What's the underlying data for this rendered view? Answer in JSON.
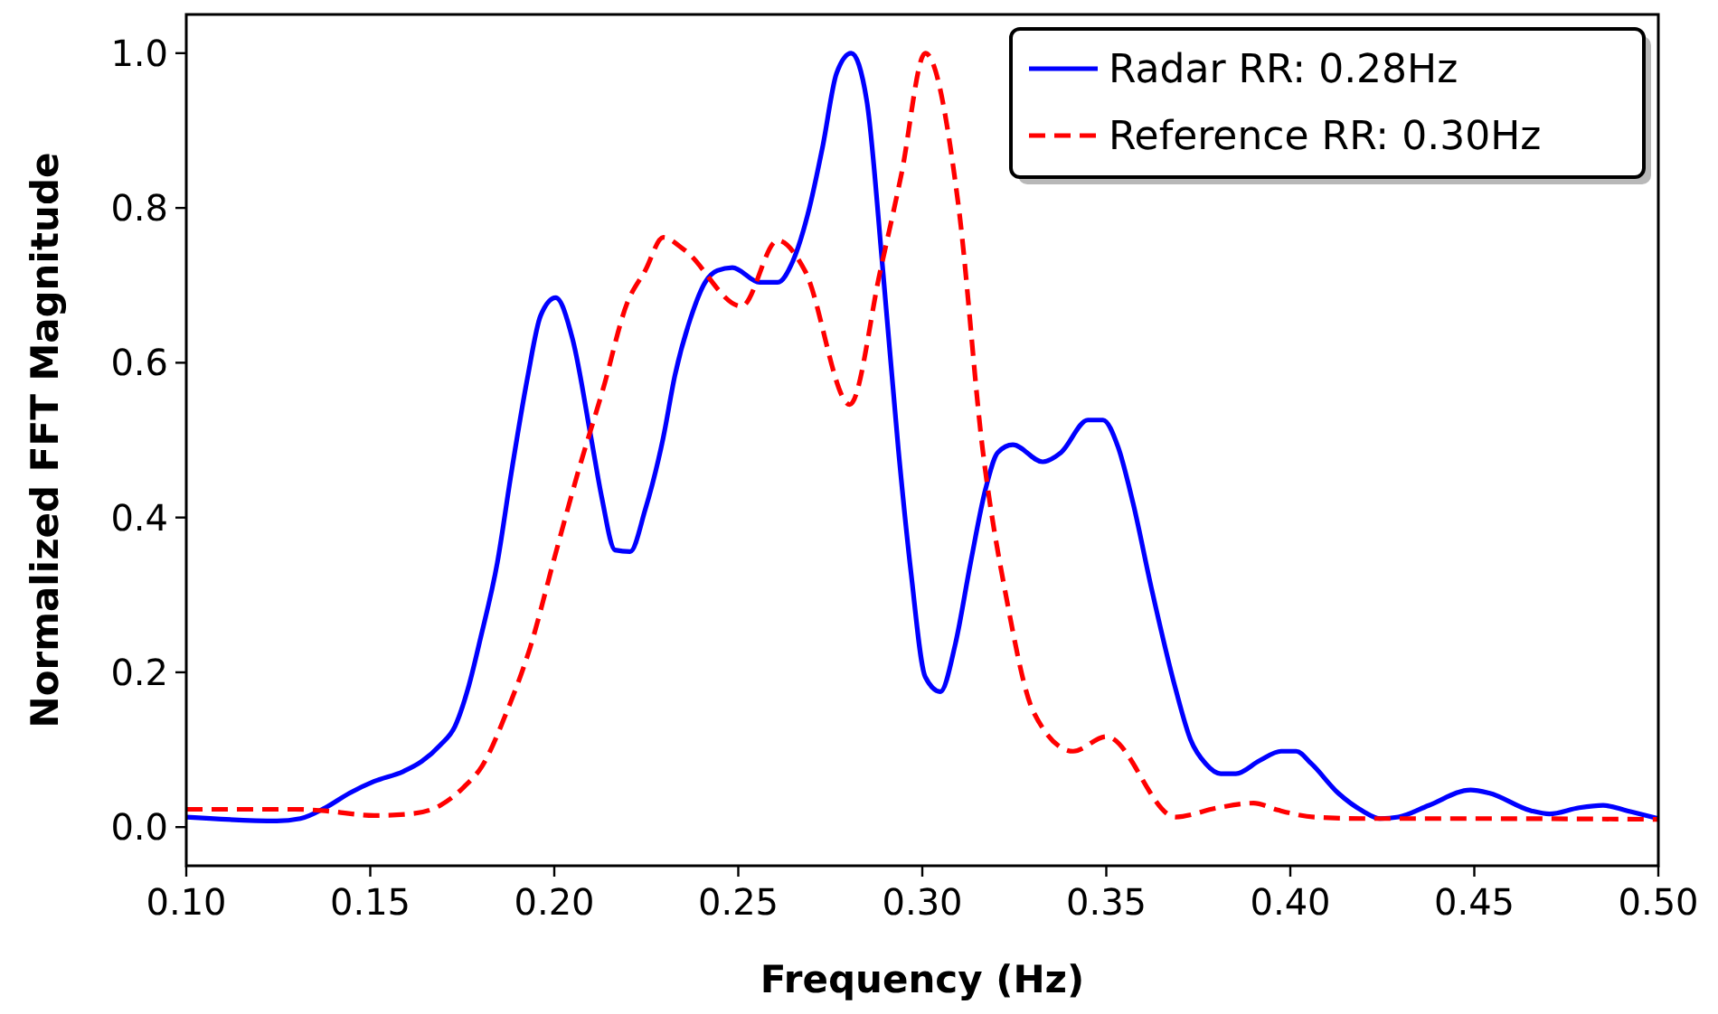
{
  "chart_data": {
    "type": "line",
    "xlabel": "Frequency (Hz)",
    "ylabel": "Normalized FFT Magnitude",
    "xlim": [
      0.1,
      0.5
    ],
    "ylim": [
      -0.05,
      1.05
    ],
    "xticks": [
      {
        "value": 0.1,
        "label": "0.10"
      },
      {
        "value": 0.15,
        "label": "0.15"
      },
      {
        "value": 0.2,
        "label": "0.20"
      },
      {
        "value": 0.25,
        "label": "0.25"
      },
      {
        "value": 0.3,
        "label": "0.30"
      },
      {
        "value": 0.35,
        "label": "0.35"
      },
      {
        "value": 0.4,
        "label": "0.40"
      },
      {
        "value": 0.45,
        "label": "0.45"
      },
      {
        "value": 0.5,
        "label": "0.50"
      }
    ],
    "yticks": [
      {
        "value": 0,
        "label": "0.0"
      },
      {
        "value": 0.2,
        "label": "0.2"
      },
      {
        "value": 0.4,
        "label": "0.4"
      },
      {
        "value": 0.6,
        "label": "0.6"
      },
      {
        "value": 0.8,
        "label": "0.8"
      },
      {
        "value": 1,
        "label": "1.0"
      }
    ],
    "legend": "top right",
    "grid": false,
    "series": [
      {
        "name": "Radar RR: 0.28Hz",
        "color": "#0000ff",
        "line_style": "solid",
        "x": [
          0.1,
          0.1246,
          0.131,
          0.1378,
          0.1444,
          0.151,
          0.159,
          0.164,
          0.169,
          0.173,
          0.1768,
          0.18,
          0.1845,
          0.1883,
          0.1927,
          0.1963,
          0.2004,
          0.205,
          0.21,
          0.2129,
          0.2165,
          0.2206,
          0.2247,
          0.2296,
          0.2328,
          0.237,
          0.241,
          0.2443,
          0.2484,
          0.2558,
          0.2607,
          0.2648,
          0.2689,
          0.273,
          0.2767,
          0.2807,
          0.2849,
          0.2893,
          0.2935,
          0.297,
          0.3008,
          0.3049,
          0.309,
          0.3131,
          0.3172,
          0.3205,
          0.3246,
          0.3327,
          0.3377,
          0.345,
          0.3491,
          0.3532,
          0.3573,
          0.3622,
          0.3688,
          0.3729,
          0.377,
          0.3811,
          0.3852,
          0.3917,
          0.3975,
          0.4016,
          0.4057,
          0.413,
          0.4196,
          0.4245,
          0.4294,
          0.4376,
          0.449,
          0.454,
          0.4655,
          0.4704,
          0.4785,
          0.485,
          0.4916,
          0.5
        ],
        "values": [
          0.013,
          0.008,
          0.011,
          0.025,
          0.044,
          0.059,
          0.072,
          0.085,
          0.106,
          0.13,
          0.183,
          0.245,
          0.341,
          0.457,
          0.58,
          0.661,
          0.684,
          0.63,
          0.503,
          0.426,
          0.358,
          0.356,
          0.41,
          0.503,
          0.584,
          0.657,
          0.704,
          0.719,
          0.723,
          0.704,
          0.704,
          0.731,
          0.792,
          0.881,
          0.974,
          1.0,
          0.939,
          0.719,
          0.488,
          0.326,
          0.194,
          0.175,
          0.237,
          0.341,
          0.437,
          0.484,
          0.494,
          0.472,
          0.484,
          0.526,
          0.526,
          0.491,
          0.418,
          0.31,
          0.179,
          0.113,
          0.082,
          0.069,
          0.069,
          0.086,
          0.098,
          0.098,
          0.082,
          0.044,
          0.021,
          0.011,
          0.013,
          0.028,
          0.048,
          0.044,
          0.021,
          0.017,
          0.025,
          0.028,
          0.021,
          0.011
        ]
      },
      {
        "name": "Reference RR: 0.30Hz",
        "color": "#ff0000",
        "line_style": "dashed",
        "x": [
          0.1,
          0.1296,
          0.1377,
          0.151,
          0.1608,
          0.169,
          0.1755,
          0.1804,
          0.187,
          0.1935,
          0.2001,
          0.2066,
          0.2132,
          0.2198,
          0.2247,
          0.2296,
          0.2353,
          0.2509,
          0.2607,
          0.2681,
          0.2803,
          0.2886,
          0.2943,
          0.3008,
          0.3098,
          0.3164,
          0.3229,
          0.3303,
          0.341,
          0.35,
          0.3688,
          0.3803,
          0.39,
          0.3966,
          0.4065,
          0.4212,
          0.45,
          0.5
        ],
        "values": [
          0.023,
          0.023,
          0.021,
          0.015,
          0.017,
          0.028,
          0.052,
          0.079,
          0.148,
          0.233,
          0.349,
          0.461,
          0.565,
          0.677,
          0.719,
          0.762,
          0.746,
          0.673,
          0.758,
          0.719,
          0.546,
          0.719,
          0.843,
          1.0,
          0.804,
          0.488,
          0.295,
          0.148,
          0.098,
          0.117,
          0.013,
          0.025,
          0.031,
          0.022,
          0.013,
          0.011,
          0.011,
          0.01
        ]
      }
    ]
  }
}
